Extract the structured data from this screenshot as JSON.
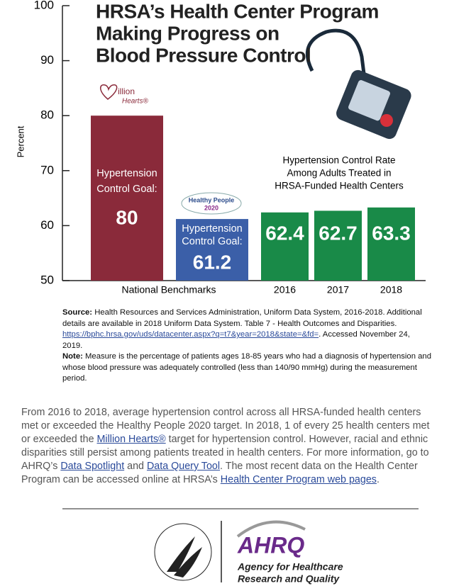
{
  "chart_data": {
    "type": "bar",
    "title_lines": [
      "HRSA’s Health Center Program",
      "Making Progress on",
      "Blood Pressure Control"
    ],
    "y_label": "Percent",
    "categories": [
      null,
      null,
      "2016",
      "2017",
      "2018"
    ],
    "group_label": "National Benchmarks",
    "values": [
      80,
      61.2,
      62.4,
      62.7,
      63.3
    ],
    "colors": [
      "#8a2a3a",
      "#3b5fa8",
      "#198a48",
      "#198a48",
      "#198a48"
    ],
    "goal_label_lines": [
      "Hypertension",
      "Control Goal:"
    ],
    "annotation_lines": [
      "Hypertension Control Rate",
      "Among Adults Treated in",
      "HRSA-Funded Health Centers"
    ],
    "logos": {
      "million_hearts": [
        "illion",
        "Hearts®"
      ],
      "healthy_people": [
        "Healthy People",
        "2020"
      ]
    },
    "ylim": [
      50,
      100
    ],
    "yticks": [
      50,
      60,
      70,
      80,
      90,
      100
    ],
    "grid": false
  },
  "source": [
    {
      "text": "Source:",
      "bold": true
    },
    {
      "text": " Health Resources and Services Administration, Uniform Data System, 2016-2018. Additional details are available in 2018 Uniform Data System. Table 7 - Health Outcomes and Disparities. "
    },
    {
      "text": "https://bphc.hrsa.gov/uds/datacenter.aspx?q=t7&year=2018&state=&fd=",
      "link": true
    },
    {
      "text": ". Accessed November 24, 2019."
    }
  ],
  "note": [
    {
      "text": "Note:",
      "bold": true
    },
    {
      "text": " Measure is the percentage of patients ages 18-85 years who had a diagnosis of hypertension and whose blood pressure was adequately controlled (less than 140/90 mmHg) during the measurement period."
    }
  ],
  "paragraph": [
    {
      "text": "From 2016 to 2018, average hypertension control across all HRSA-funded health centers met or exceeded the Healthy People 2020 target. In 2018, 1 of every 25 health centers met or exceeded the "
    },
    {
      "text": "Million Hearts®",
      "link": true
    },
    {
      "text": " target for hypertension control. However, racial and ethnic disparities still persist among patients treated in health centers. For more information, go to AHRQ’s "
    },
    {
      "text": "Data Spotlight",
      "link": true
    },
    {
      "text": " and "
    },
    {
      "text": "Data Query Tool",
      "link": true
    },
    {
      "text": ". The most recent data on the Health Center Program can be accessed online at HRSA’s "
    },
    {
      "text": "Health Center Program web pages",
      "link": true
    },
    {
      "text": "."
    }
  ],
  "footer": {
    "ahrq": "AHRQ",
    "agency_lines": [
      "Agency for Healthcare",
      "Research and Quality"
    ]
  }
}
